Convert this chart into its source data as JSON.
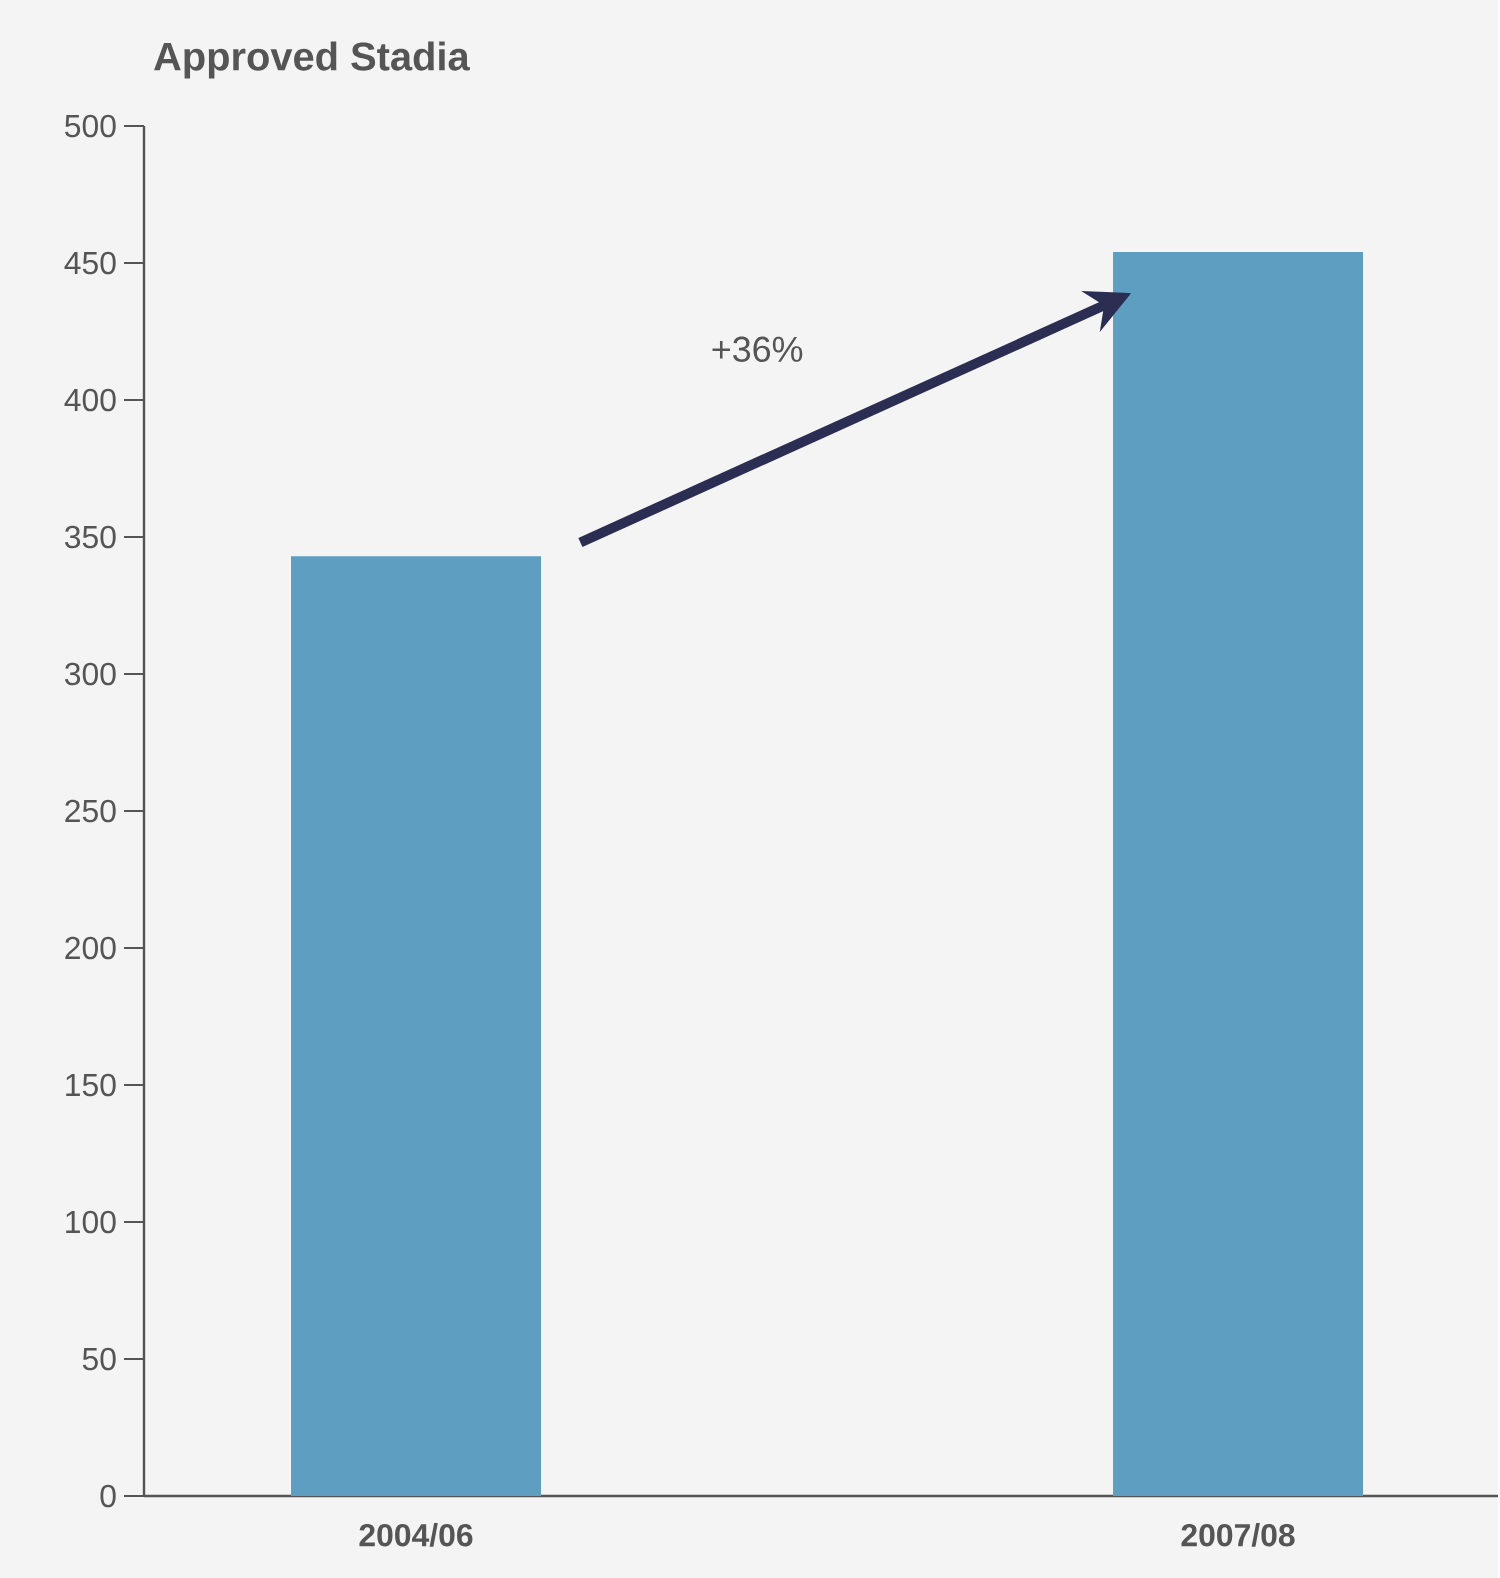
{
  "chart_data": {
    "type": "bar",
    "title": "Approved Stadia",
    "categories": [
      "2004/06",
      "2007/08"
    ],
    "values": [
      343,
      454
    ],
    "color": "#5e9fc1",
    "ylim": [
      0,
      500
    ],
    "yticks": [
      0,
      50,
      100,
      150,
      200,
      250,
      300,
      350,
      400,
      450,
      500
    ],
    "annotations": [
      "+36%"
    ]
  }
}
